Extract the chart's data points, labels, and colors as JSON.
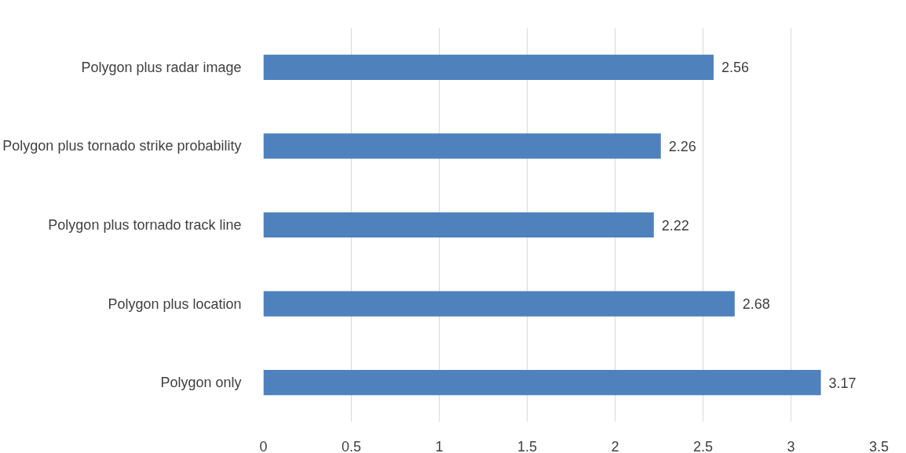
{
  "chart_data": {
    "type": "bar",
    "orientation": "horizontal",
    "categories": [
      "Polygon plus radar image",
      "Polygon plus tornado strike probability",
      "Polygon plus tornado track line",
      "Polygon plus location",
      "Polygon only"
    ],
    "values": [
      2.56,
      2.26,
      2.22,
      2.68,
      3.17
    ],
    "color": "#4f81bd",
    "xlim": [
      0,
      3.5
    ],
    "xticks": [
      0,
      0.5,
      1,
      1.5,
      2,
      2.5,
      3,
      3.5
    ],
    "grid": "x",
    "data_labels": true
  }
}
